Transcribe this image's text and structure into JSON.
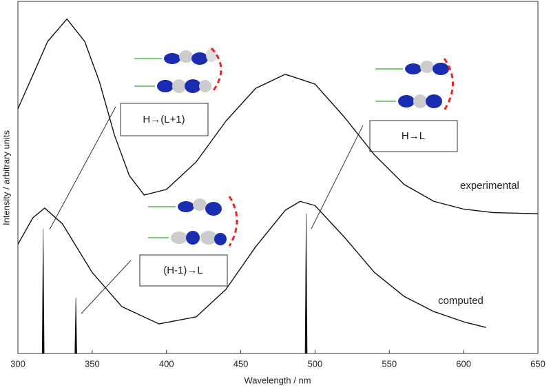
{
  "chart_data": {
    "type": "line",
    "x_label": "Wavelength / nm",
    "y_label": "Intensity / arbitrary units",
    "xlim": [
      300,
      650
    ],
    "xticks": [
      300,
      350,
      400,
      450,
      500,
      550,
      600,
      650
    ],
    "ylim": [
      0,
      100
    ],
    "series": [
      {
        "name": "experimental",
        "color": "#111111",
        "x": [
          300,
          310,
          320,
          333,
          345,
          355,
          365,
          375,
          385,
          400,
          420,
          440,
          460,
          480,
          500,
          520,
          540,
          560,
          580,
          600,
          620,
          650
        ],
        "values": [
          69.5,
          79,
          88.6,
          95,
          88.6,
          77,
          62,
          50.5,
          45,
          46.6,
          54.4,
          66,
          75.3,
          79.3,
          76.5,
          67,
          56.4,
          48,
          43.2,
          41,
          40,
          39.7
        ]
      },
      {
        "name": "computed",
        "color": "#111111",
        "x": [
          300,
          310,
          318,
          330,
          350,
          370,
          395,
          420,
          440,
          460,
          480,
          490,
          500,
          520,
          540,
          560,
          580,
          600,
          615
        ],
        "values": [
          31,
          38.5,
          41.3,
          36.8,
          23,
          13.3,
          8.4,
          10.4,
          18.2,
          30.3,
          40.7,
          43.2,
          42,
          32.9,
          23,
          16.2,
          11.9,
          9,
          7.4
        ]
      }
    ],
    "sticks": {
      "color": "#111111",
      "x": [
        317,
        339,
        494
      ],
      "values": [
        35.4,
        15.9,
        39.7
      ]
    },
    "annotations": [
      "H→(L+1)",
      "H→L",
      "(H-1)→L"
    ]
  }
}
